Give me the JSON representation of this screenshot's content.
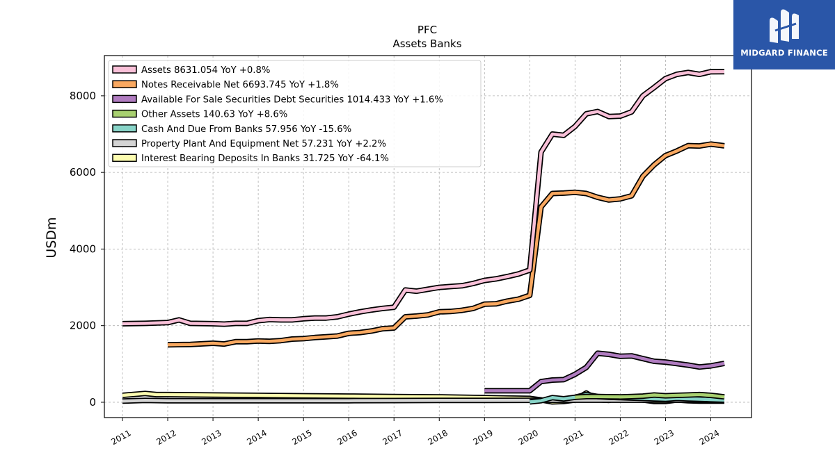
{
  "brand": {
    "name": "MIDGARD FINANCE",
    "bg_color": "#2a56a8",
    "icon": "midgard-logo-icon"
  },
  "chart_data": {
    "type": "line",
    "title": "PFC",
    "subtitle": "Assets Banks",
    "xlabel": "",
    "ylabel": "USDm",
    "xlim": [
      2010.6,
      2024.9
    ],
    "ylim": [
      -400,
      9050
    ],
    "x_ticks": [
      2011,
      2012,
      2013,
      2014,
      2015,
      2016,
      2017,
      2018,
      2019,
      2020,
      2021,
      2022,
      2023,
      2024
    ],
    "x_tick_labels": [
      "2011",
      "2012",
      "2013",
      "2014",
      "2015",
      "2016",
      "2017",
      "2018",
      "2019",
      "2020",
      "2021",
      "2022",
      "2023",
      "2024"
    ],
    "y_ticks": [
      0,
      2000,
      4000,
      6000,
      8000
    ],
    "y_tick_labels": [
      "0",
      "2000",
      "4000",
      "6000",
      "8000"
    ],
    "grid": true,
    "legend_position": "top-left",
    "series": [
      {
        "name": "Assets  8631.054 YoY +0.8%",
        "color": "#f9c0d8",
        "points": [
          [
            2011.0,
            2050
          ],
          [
            2011.5,
            2060
          ],
          [
            2012.0,
            2080
          ],
          [
            2012.25,
            2150
          ],
          [
            2012.5,
            2060
          ],
          [
            2013.0,
            2050
          ],
          [
            2013.25,
            2040
          ],
          [
            2013.5,
            2060
          ],
          [
            2013.75,
            2060
          ],
          [
            2014.0,
            2130
          ],
          [
            2014.25,
            2160
          ],
          [
            2014.5,
            2150
          ],
          [
            2014.75,
            2150
          ],
          [
            2015.0,
            2180
          ],
          [
            2015.25,
            2200
          ],
          [
            2015.5,
            2200
          ],
          [
            2015.75,
            2230
          ],
          [
            2016.0,
            2300
          ],
          [
            2016.25,
            2360
          ],
          [
            2016.5,
            2410
          ],
          [
            2016.75,
            2450
          ],
          [
            2017.0,
            2480
          ],
          [
            2017.25,
            2930
          ],
          [
            2017.5,
            2900
          ],
          [
            2017.75,
            2950
          ],
          [
            2018.0,
            3000
          ],
          [
            2018.25,
            3020
          ],
          [
            2018.5,
            3040
          ],
          [
            2018.75,
            3100
          ],
          [
            2019.0,
            3180
          ],
          [
            2019.25,
            3220
          ],
          [
            2019.5,
            3280
          ],
          [
            2019.75,
            3350
          ],
          [
            2020.0,
            3450
          ],
          [
            2020.25,
            6530
          ],
          [
            2020.5,
            7000
          ],
          [
            2020.75,
            6970
          ],
          [
            2021.0,
            7200
          ],
          [
            2021.25,
            7530
          ],
          [
            2021.5,
            7590
          ],
          [
            2021.75,
            7460
          ],
          [
            2022.0,
            7470
          ],
          [
            2022.25,
            7580
          ],
          [
            2022.5,
            8000
          ],
          [
            2022.75,
            8220
          ],
          [
            2023.0,
            8450
          ],
          [
            2023.25,
            8560
          ],
          [
            2023.5,
            8610
          ],
          [
            2023.75,
            8560
          ],
          [
            2024.0,
            8630
          ],
          [
            2024.3,
            8631
          ]
        ]
      },
      {
        "name": "Notes Receivable Net  6693.745 YoY +1.8%",
        "color": "#f9a860",
        "points": [
          [
            2012.0,
            1500
          ],
          [
            2012.5,
            1510
          ],
          [
            2013.0,
            1540
          ],
          [
            2013.25,
            1520
          ],
          [
            2013.5,
            1580
          ],
          [
            2013.75,
            1580
          ],
          [
            2014.0,
            1600
          ],
          [
            2014.25,
            1590
          ],
          [
            2014.5,
            1610
          ],
          [
            2014.75,
            1650
          ],
          [
            2015.0,
            1660
          ],
          [
            2015.25,
            1690
          ],
          [
            2015.5,
            1710
          ],
          [
            2015.75,
            1730
          ],
          [
            2016.0,
            1800
          ],
          [
            2016.25,
            1820
          ],
          [
            2016.5,
            1860
          ],
          [
            2016.75,
            1920
          ],
          [
            2017.0,
            1940
          ],
          [
            2017.25,
            2230
          ],
          [
            2017.5,
            2250
          ],
          [
            2017.75,
            2280
          ],
          [
            2018.0,
            2360
          ],
          [
            2018.25,
            2370
          ],
          [
            2018.5,
            2400
          ],
          [
            2018.75,
            2450
          ],
          [
            2019.0,
            2560
          ],
          [
            2019.25,
            2570
          ],
          [
            2019.5,
            2640
          ],
          [
            2019.75,
            2690
          ],
          [
            2020.0,
            2790
          ],
          [
            2020.25,
            5100
          ],
          [
            2020.5,
            5450
          ],
          [
            2020.75,
            5460
          ],
          [
            2021.0,
            5480
          ],
          [
            2021.25,
            5450
          ],
          [
            2021.5,
            5350
          ],
          [
            2021.75,
            5280
          ],
          [
            2022.0,
            5310
          ],
          [
            2022.25,
            5390
          ],
          [
            2022.5,
            5900
          ],
          [
            2022.75,
            6200
          ],
          [
            2023.0,
            6440
          ],
          [
            2023.25,
            6560
          ],
          [
            2023.5,
            6700
          ],
          [
            2023.75,
            6690
          ],
          [
            2024.0,
            6740
          ],
          [
            2024.3,
            6694
          ]
        ]
      },
      {
        "name": "Available For Sale Securities Debt Securities  1014.433 YoY +1.6%",
        "color": "#b07cc0",
        "points": [
          [
            2019.0,
            300
          ],
          [
            2019.5,
            300
          ],
          [
            2020.0,
            300
          ],
          [
            2020.25,
            540
          ],
          [
            2020.5,
            580
          ],
          [
            2020.75,
            590
          ],
          [
            2021.0,
            730
          ],
          [
            2021.25,
            910
          ],
          [
            2021.5,
            1280
          ],
          [
            2021.75,
            1250
          ],
          [
            2022.0,
            1200
          ],
          [
            2022.25,
            1210
          ],
          [
            2022.5,
            1140
          ],
          [
            2022.75,
            1070
          ],
          [
            2023.0,
            1050
          ],
          [
            2023.25,
            1010
          ],
          [
            2023.5,
            970
          ],
          [
            2023.75,
            920
          ],
          [
            2024.0,
            950
          ],
          [
            2024.3,
            1014
          ]
        ]
      },
      {
        "name": "Other Assets  140.63 YoY +8.6%",
        "color": "#a8d070",
        "points": [
          [
            2021.0,
            130
          ],
          [
            2021.25,
            150
          ],
          [
            2021.5,
            150
          ],
          [
            2021.75,
            145
          ],
          [
            2022.0,
            140
          ],
          [
            2022.25,
            150
          ],
          [
            2022.5,
            160
          ],
          [
            2022.75,
            190
          ],
          [
            2023.0,
            170
          ],
          [
            2023.25,
            180
          ],
          [
            2023.5,
            190
          ],
          [
            2023.75,
            200
          ],
          [
            2024.0,
            180
          ],
          [
            2024.3,
            141
          ]
        ]
      },
      {
        "name": "Cash And Due From Banks  57.956 YoY -15.6%",
        "color": "#88d4c8",
        "points": [
          [
            2020.0,
            10
          ],
          [
            2020.25,
            40
          ],
          [
            2020.5,
            120
          ],
          [
            2020.75,
            90
          ],
          [
            2021.0,
            130
          ],
          [
            2021.25,
            200
          ],
          [
            2021.5,
            150
          ],
          [
            2021.75,
            130
          ],
          [
            2022.0,
            120
          ],
          [
            2022.25,
            110
          ],
          [
            2022.5,
            100
          ],
          [
            2022.75,
            90
          ],
          [
            2023.0,
            80
          ],
          [
            2023.25,
            100
          ],
          [
            2023.5,
            90
          ],
          [
            2023.75,
            80
          ],
          [
            2024.0,
            70
          ],
          [
            2024.3,
            58
          ]
        ]
      },
      {
        "name": "Property Plant And Equipment Net  57.231 YoY +2.2%",
        "color": "#d4d4d4",
        "points": [
          [
            2011.0,
            30
          ],
          [
            2011.5,
            50
          ],
          [
            2012.0,
            40
          ],
          [
            2013.0,
            40
          ],
          [
            2014.0,
            40
          ],
          [
            2015.0,
            40
          ],
          [
            2016.0,
            40
          ],
          [
            2017.0,
            45
          ],
          [
            2018.0,
            48
          ],
          [
            2019.0,
            50
          ],
          [
            2020.0,
            52
          ],
          [
            2021.0,
            55
          ],
          [
            2022.0,
            56
          ],
          [
            2023.0,
            56
          ],
          [
            2024.0,
            56
          ],
          [
            2024.3,
            57
          ]
        ]
      },
      {
        "name": "Interest Bearing Deposits In Banks  31.725 YoY -64.1%",
        "color": "#fdfdb0",
        "points": [
          [
            2011.0,
            180
          ],
          [
            2011.5,
            230
          ],
          [
            2011.75,
            200
          ],
          [
            2012.0,
            200
          ],
          [
            2013.0,
            190
          ],
          [
            2014.0,
            180
          ],
          [
            2015.0,
            170
          ],
          [
            2016.0,
            160
          ],
          [
            2017.0,
            150
          ],
          [
            2018.0,
            140
          ],
          [
            2019.0,
            120
          ],
          [
            2019.5,
            110
          ],
          [
            2020.0,
            100
          ],
          [
            2020.25,
            60
          ],
          [
            2020.5,
            10
          ],
          [
            2020.75,
            20
          ],
          [
            2021.0,
            60
          ],
          [
            2021.25,
            240
          ],
          [
            2021.5,
            70
          ],
          [
            2021.75,
            50
          ],
          [
            2022.0,
            130
          ],
          [
            2022.25,
            110
          ],
          [
            2022.5,
            60
          ],
          [
            2022.75,
            20
          ],
          [
            2023.0,
            20
          ],
          [
            2023.25,
            60
          ],
          [
            2023.5,
            40
          ],
          [
            2023.75,
            30
          ],
          [
            2024.0,
            30
          ],
          [
            2024.3,
            32
          ]
        ]
      }
    ]
  }
}
